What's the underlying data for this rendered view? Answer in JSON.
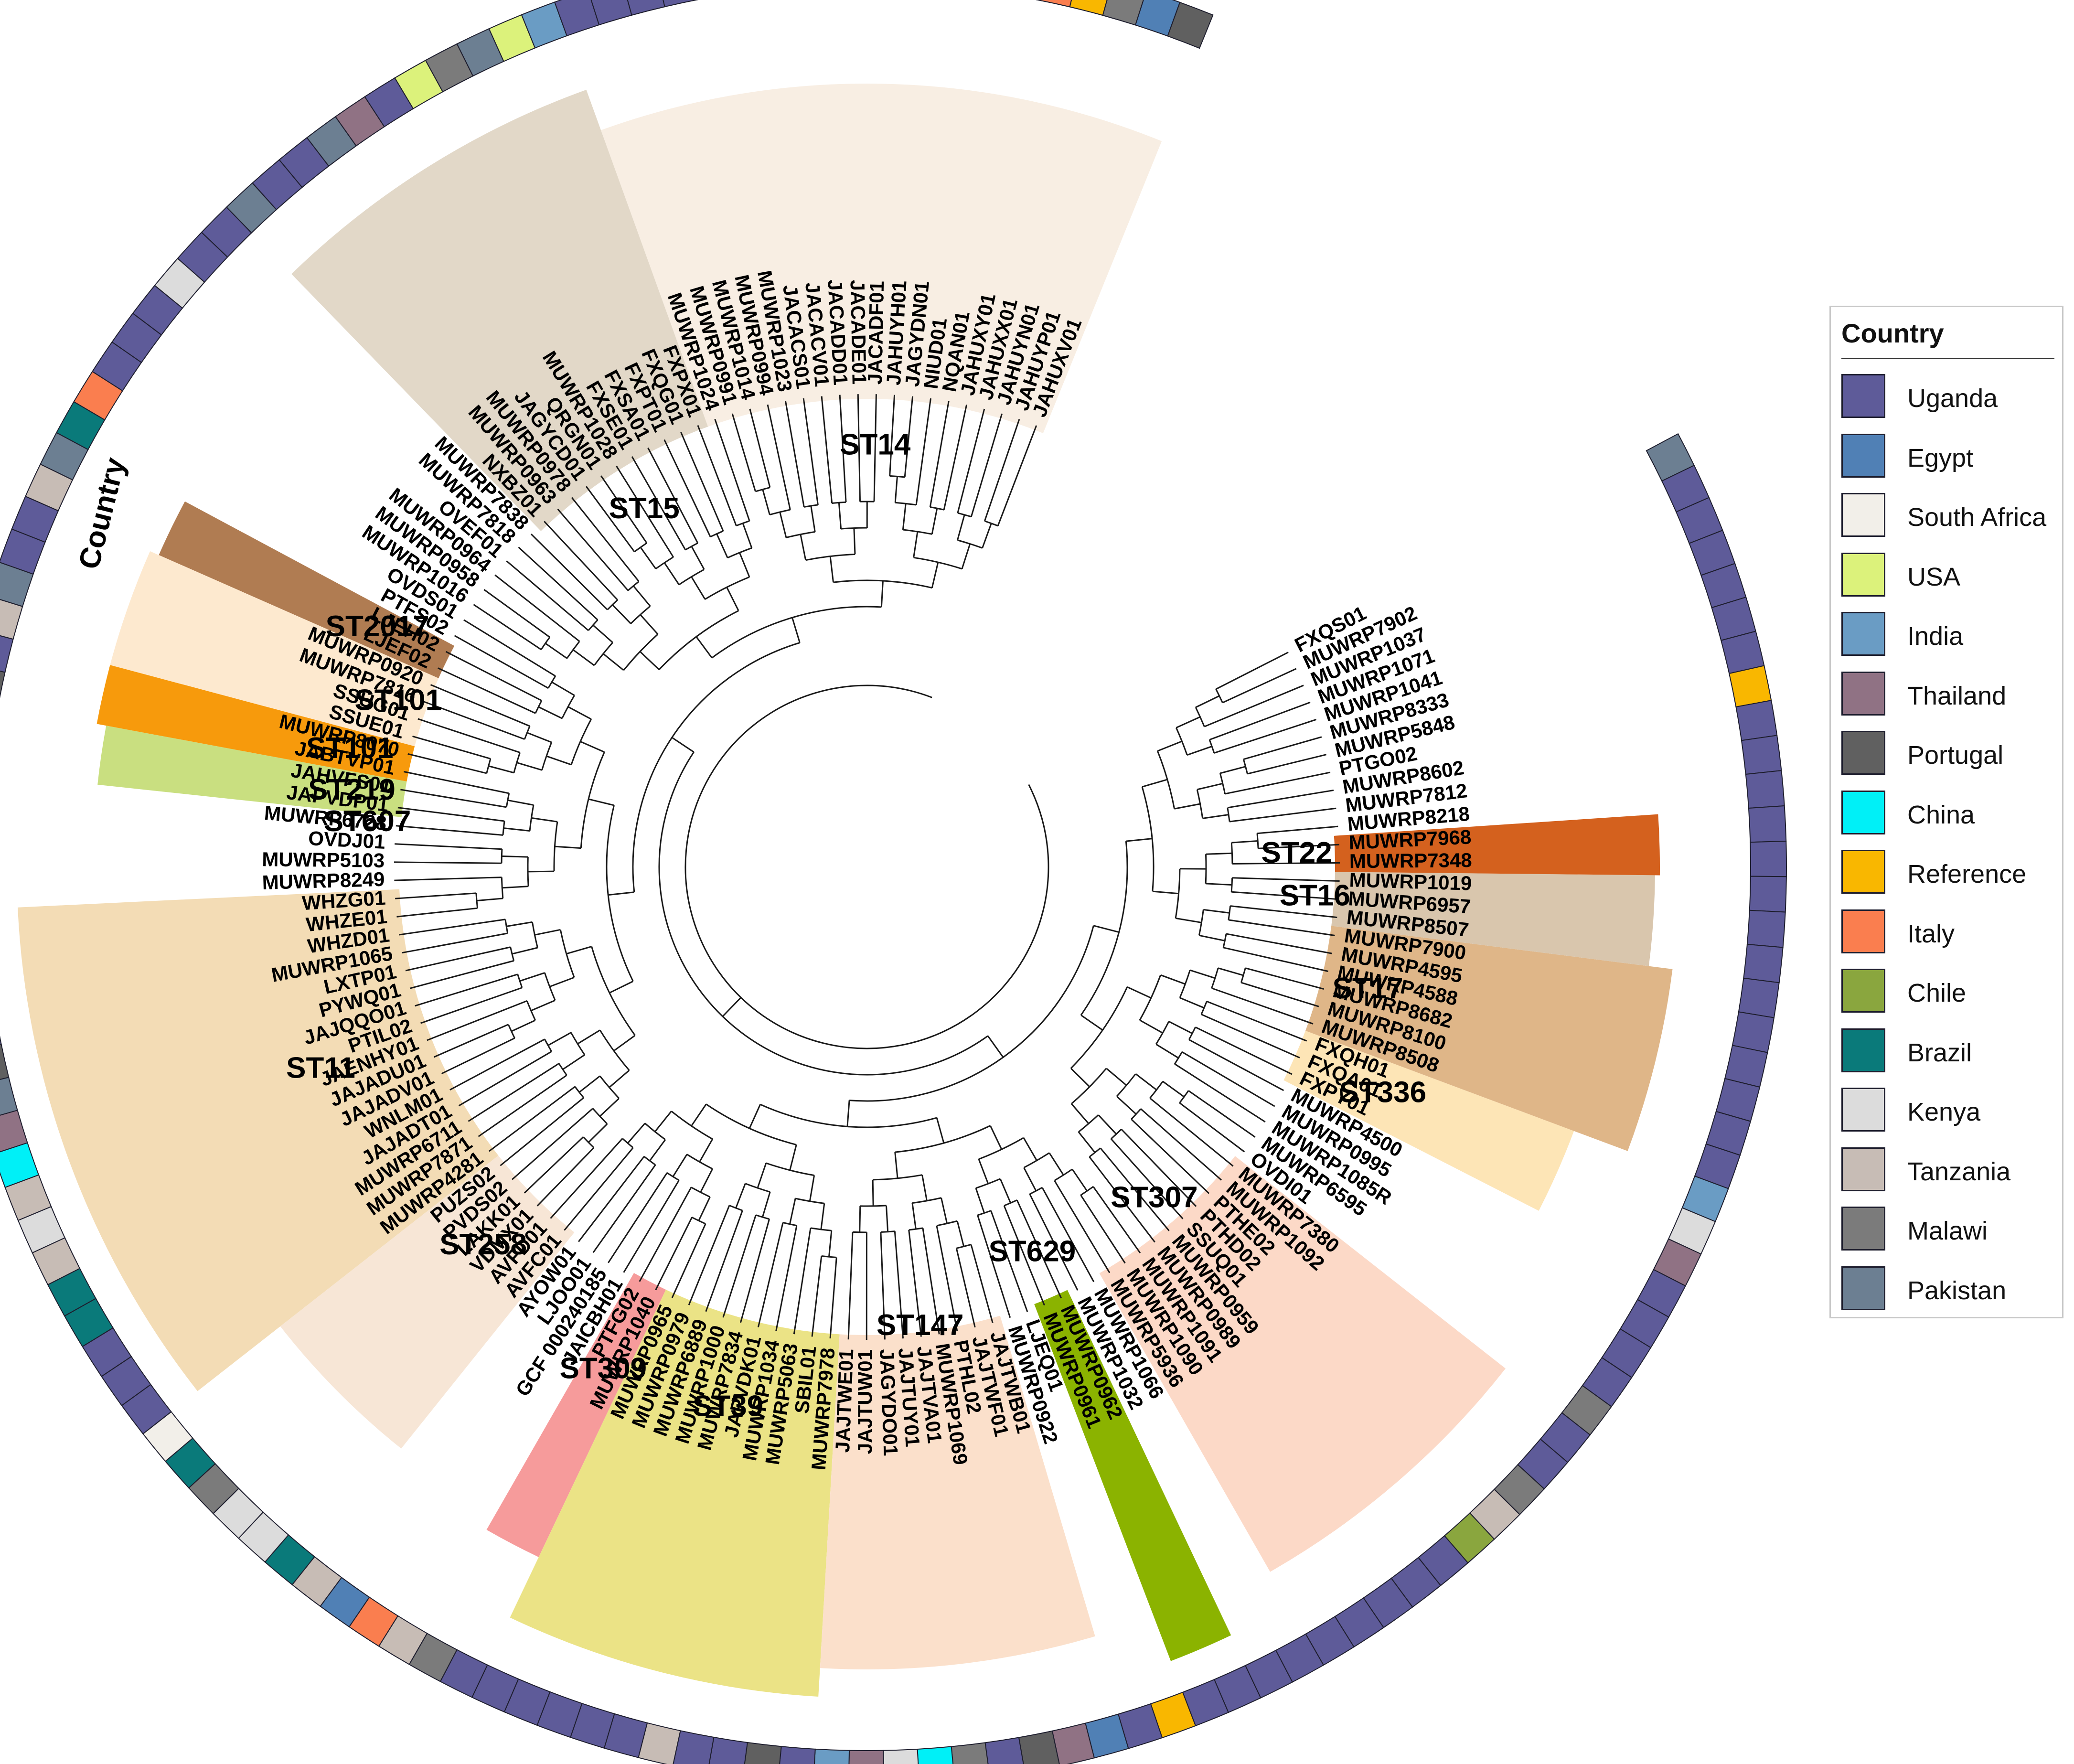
{
  "legend": {
    "title": "Country",
    "items": [
      {
        "label": "Uganda",
        "color": "#5e5b99"
      },
      {
        "label": "Egypt",
        "color": "#5080b5"
      },
      {
        "label": "South Africa",
        "color": "#f2efe9"
      },
      {
        "label": "USA",
        "color": "#dcf27b"
      },
      {
        "label": "India",
        "color": "#6a9cc4"
      },
      {
        "label": "Thailand",
        "color": "#907284"
      },
      {
        "label": "Portugal",
        "color": "#606060"
      },
      {
        "label": "China",
        "color": "#00f0f7"
      },
      {
        "label": "Reference",
        "color": "#f9b700"
      },
      {
        "label": "Italy",
        "color": "#fa7e4f"
      },
      {
        "label": "Chile",
        "color": "#8aa63e"
      },
      {
        "label": "Brazil",
        "color": "#0a7a7a"
      },
      {
        "label": "Kenya",
        "color": "#dcdcdc"
      },
      {
        "label": "Tanzania",
        "color": "#c7bcb5"
      },
      {
        "label": "Malawi",
        "color": "#7b7b7b"
      },
      {
        "label": "Pakistan",
        "color": "#6c7f92"
      }
    ]
  },
  "ring_label": "Country",
  "tips": [
    "FXQS01",
    "MUWRP7902",
    "MUWRP1037",
    "MUWRP1071",
    "MUWRP1041",
    "MUWRP8333",
    "MUWRP5848",
    "PTGO02",
    "MUWRP8602",
    "MUWRP7812",
    "MUWRP8218",
    "MUWRP7968",
    "MUWRP7348",
    "MUWRP1019",
    "MUWRP6957",
    "MUWRP8507",
    "MUWRP7900",
    "MUWRP4595",
    "MUWRP4588",
    "MUWRP8682",
    "MUWRP8100",
    "MUWRP8508",
    "FXQH01",
    "FXQA01",
    "FXPY01",
    "MUWRP4500",
    "MUWRP0995",
    "MUWRP1085R",
    "MUWRP6595",
    "OVDI01",
    "MUWRP7380",
    "MUWRP1092",
    "PTHE02",
    "PTHD02",
    "SSUQ01",
    "MUWRP0959",
    "MUWRP0989",
    "MUWRP1091",
    "MUWRP1090",
    "MUWRP5936",
    "MUWRP1066",
    "MUWRP1032",
    "MUWRP0962",
    "MUWRP0961",
    "LJEQ01",
    "MUWRP0922",
    "JAJTWB01",
    "JAJTWF01",
    "PTHL02",
    "MUWRP1069",
    "JAJTVA01",
    "JAJTUY01",
    "JAGYDO01",
    "JAJTUW01",
    "JAJTWE01",
    "MUWRP7978",
    "SBIL01",
    "MUWRP5063",
    "MUWRP1034",
    "JAPVDK01",
    "MUWRP7834",
    "MUWRP1000",
    "MUWRP6889",
    "MUWRP0979",
    "MUWRP0965",
    "MUWRP1040",
    "PTFG02",
    "JAICBH01",
    "GCF 000240185",
    "LJOO01",
    "AYOW01",
    "AVFC01",
    "AVFD01",
    "VDMX01",
    "LAKK01",
    "PVDS02",
    "PUZS02",
    "MUWRP4281",
    "MUWRP7871",
    "MUWRP6711",
    "JAJADT01",
    "WNLM01",
    "JAJADV01",
    "JAJADU01",
    "JAENHY01",
    "PTIL02",
    "JAJQQO01",
    "PYWQ01",
    "LXTP01",
    "MUWRP1065",
    "WHZD01",
    "WHZE01",
    "WHZG01",
    "MUWRP8249",
    "MUWRP5103",
    "OVDJ01",
    "MUWRP6728",
    "JAPVDP01",
    "JAHVFS01",
    "JABTVP01",
    "MUWRP8070",
    "SSUE01",
    "SSUG01",
    "MUWRP7816",
    "MUWRP0920",
    "LJEF02",
    "LJEH02",
    "PTFS02",
    "OVDS01",
    "MUWRP1016",
    "MUWRP0958",
    "MUWRP0964",
    "OVEF01",
    "MUWRP7818",
    "MUWRP7838",
    "NXBZ01",
    "MUWRP0963",
    "MUWRP0978",
    "JAGYCD01",
    "QRGN01",
    "MUWRP1028",
    "FXSE01",
    "FXSA01",
    "FXPT01",
    "FXQG01",
    "FXPX01",
    "MUWRP1024",
    "MUWRP0991",
    "MUWRP1014",
    "MUWRP0994",
    "MUWRP1023",
    "JACACS01",
    "JACACV01",
    "JACADD01",
    "JACADE01",
    "JACADF01",
    "JAHUYH01",
    "JAGYDN01",
    "NIUD01",
    "NQAN01",
    "JAHUXY01",
    "JAHUXX01",
    "JAHUYN01",
    "JAHUYP01",
    "JAHUXV01"
  ],
  "sequence_types": [
    {
      "label": "ST11",
      "color": "#f3dcb5"
    },
    {
      "label": "ST258",
      "color": "#f7e6d6"
    },
    {
      "label": "ST309",
      "color": "#f69b9b"
    },
    {
      "label": "ST39",
      "color": "#ebe386"
    },
    {
      "label": "ST147",
      "color": "#fbe0cb"
    },
    {
      "label": "ST629",
      "color": "#8bb300"
    },
    {
      "label": "ST307",
      "color": "#fcd9c7"
    },
    {
      "label": "ST336",
      "color": "#fde5b6"
    },
    {
      "label": "ST17",
      "color": "#dfb688"
    },
    {
      "label": "ST16",
      "color": "#d9c6ad"
    },
    {
      "label": "ST22",
      "color": "#d4611e"
    },
    {
      "label": "ST14",
      "color": "#f8eee3"
    },
    {
      "label": "ST15",
      "color": "#e2d8c8"
    },
    {
      "label": "ST2017",
      "color": "#b07c52"
    },
    {
      "label": "ST101",
      "color": "#fde9cf"
    },
    {
      "label": "ST219",
      "color": "#c9df80"
    },
    {
      "label": "ST607",
      "color": "#ffffff"
    },
    {
      "label": "ST101",
      "color": "#f79a0c"
    }
  ]
}
